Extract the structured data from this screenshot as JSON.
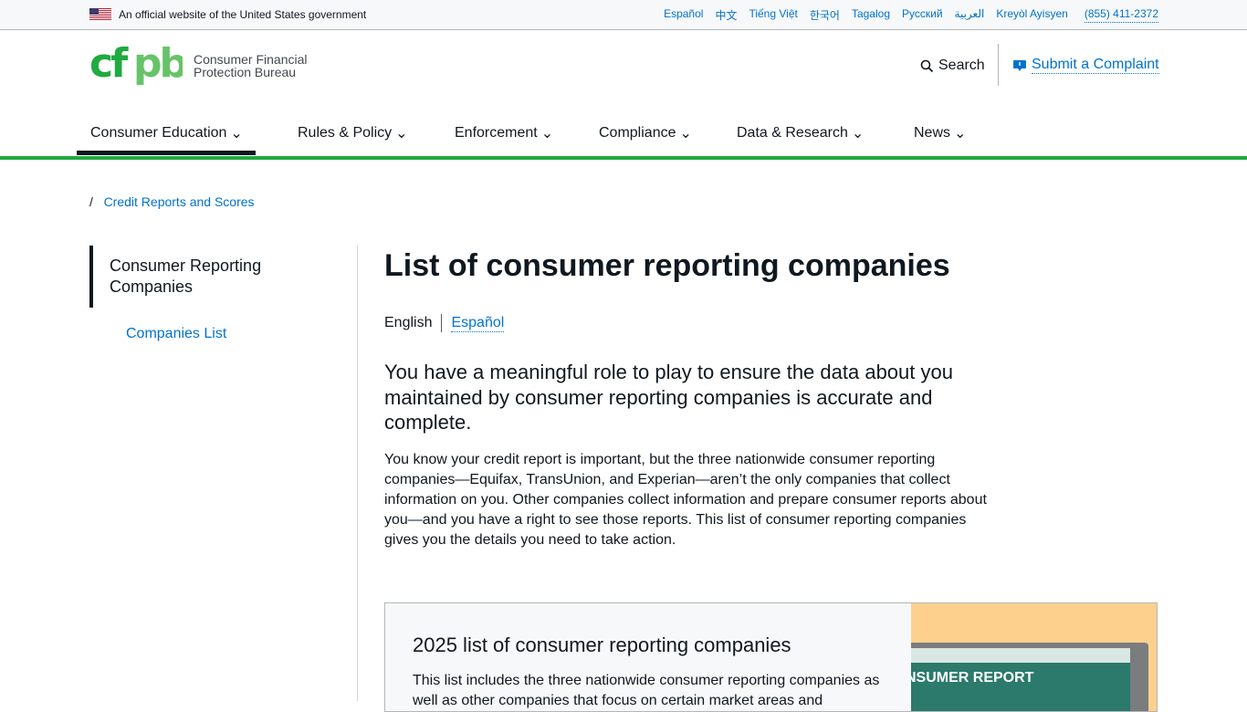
{
  "banner": {
    "official": "An official website of the United States government",
    "languages": [
      "Español",
      "中文",
      "Tiếng Việt",
      "한국어",
      "Tagalog",
      "Русский",
      "العربية",
      "Kreyòl Ayisyen"
    ],
    "phone": "(855) 411-2372"
  },
  "header": {
    "logo_mark": "cfpb",
    "logo_line1": "Consumer Financial",
    "logo_line2": "Protection Bureau",
    "search": "Search",
    "complaint": "Submit a Complaint"
  },
  "nav": [
    "Consumer Education",
    "Rules & Policy",
    "Enforcement",
    "Compliance",
    "Data & Research",
    "News"
  ],
  "breadcrumb": {
    "sep": "/",
    "link": "Credit Reports and Scores"
  },
  "sidebar": {
    "current": "Consumer Reporting Companies",
    "sub": "Companies List"
  },
  "main": {
    "title": "List of consumer reporting companies",
    "lang_current": "English",
    "lang_other": "Español",
    "lead": "You have a meaningful role to play to ensure the data about you maintained by consumer reporting companies is accurate and complete.",
    "body": "You know your credit report is important, but the three nationwide consumer reporting companies—Equifax, TransUnion, and Experian—aren’t the only companies that collect information on you. Other companies collect information and prepare consumer reports about you—and you have a right to see those reports. This list of consumer reporting companies gives you the details you need to take action."
  },
  "card": {
    "title": "2025 list of consumer reporting companies",
    "text": "This list includes the three nationwide consumer reporting companies as well as other companies that focus on certain market areas and",
    "image_label": "CONSUMER REPORT"
  },
  "colors": {
    "brand_green": "#20aa3f",
    "link": "#0072ce"
  }
}
